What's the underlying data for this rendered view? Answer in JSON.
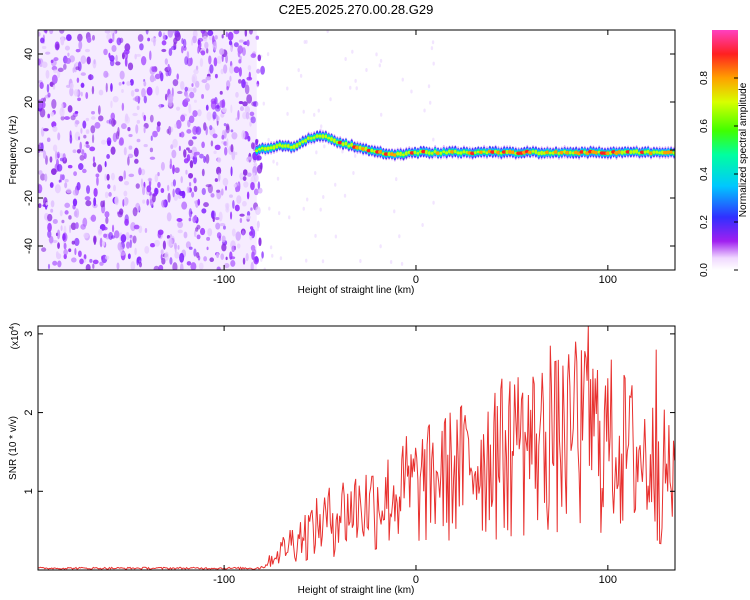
{
  "page": {
    "title": "C2E5.2025.270.00.28.G29"
  },
  "chart_data": [
    {
      "type": "heatmap",
      "title": "C2E5.2025.270.00.28.G29",
      "xlabel": "Height of straight line (km)",
      "ylabel": "Frequency (Hz)",
      "xlim": [
        -197,
        135
      ],
      "ylim": [
        -50,
        50
      ],
      "xticks": [
        -100,
        0,
        100
      ],
      "yticks": [
        -40,
        -20,
        0,
        20,
        40
      ],
      "xtick_labels": [
        "-100",
        "0",
        "100"
      ],
      "ytick_labels": [
        "-40",
        "-20",
        "0",
        "20",
        "40"
      ],
      "noise_region_end_x": -83,
      "ridge": {
        "x": [
          -83,
          -75,
          -70,
          -65,
          -60,
          -55,
          -50,
          -45,
          -40,
          -30,
          -20,
          -10,
          0,
          20,
          40,
          60,
          80,
          100,
          120,
          135
        ],
        "y": [
          0,
          1,
          2,
          1,
          3,
          5,
          6,
          5,
          3,
          1,
          -1,
          -2,
          -1,
          -1,
          -1,
          -1,
          -1,
          -1,
          -1,
          -1
        ]
      },
      "colorbar": {
        "label": "Normalized spectral amplitude",
        "range": [
          0,
          1
        ],
        "ticks": [
          0.0,
          0.2,
          0.4,
          0.6,
          0.8
        ],
        "tick_labels": [
          "0.0",
          "0.2",
          "0.4",
          "0.6",
          "0.8"
        ]
      }
    },
    {
      "type": "line",
      "xlabel": "Height of straight line (km)",
      "ylabel": "SNR (10 * v/v)",
      "y_multiplier": "(x10^4)",
      "y_multiplier_base": "(x10",
      "y_multiplier_exp": "4",
      "y_multiplier_close": ")",
      "xlim": [
        -197,
        135
      ],
      "ylim": [
        0,
        3.1
      ],
      "xticks": [
        -100,
        0,
        100
      ],
      "yticks": [
        1,
        2,
        3
      ],
      "xtick_labels": [
        "-100",
        "0",
        "100"
      ],
      "ytick_labels": [
        "1",
        "2",
        "3"
      ],
      "series": [
        {
          "name": "SNR",
          "color": "#e8312f",
          "envelope": {
            "x": [
              -197,
              -85,
              -80,
              -75,
              -70,
              -65,
              -60,
              -55,
              -50,
              -45,
              -40,
              -30,
              -20,
              -10,
              0,
              10,
              20,
              30,
              40,
              50,
              60,
              70,
              80,
              90,
              100,
              110,
              120,
              125,
              130,
              135
            ],
            "y": [
              0.02,
              0.02,
              0.05,
              0.2,
              0.35,
              0.5,
              0.6,
              0.7,
              0.8,
              0.9,
              1.0,
              1.1,
              1.2,
              1.3,
              1.45,
              1.6,
              1.75,
              1.85,
              2.0,
              2.1,
              2.2,
              2.25,
              2.3,
              2.4,
              2.3,
              2.1,
              1.9,
              1.8,
              1.7,
              1.6
            ]
          },
          "peaks": [
            {
              "x": 90,
              "y": 3.1
            },
            {
              "x": 70,
              "y": 2.85
            },
            {
              "x": 83,
              "y": 2.9
            },
            {
              "x": 125,
              "y": 2.8
            },
            {
              "x": 53,
              "y": 2.45
            },
            {
              "x": 41,
              "y": 2.25
            },
            {
              "x": -5,
              "y": 1.7
            }
          ]
        }
      ]
    }
  ]
}
